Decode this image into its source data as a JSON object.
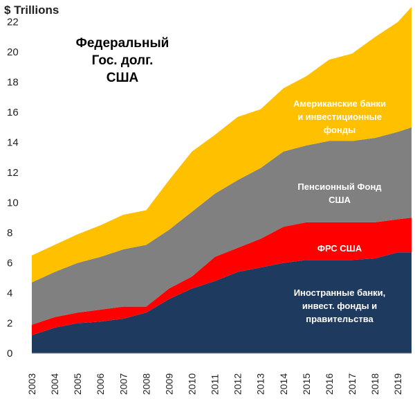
{
  "chart_data": {
    "type": "area",
    "stacked": true,
    "unit_label": "$ Trillions",
    "title_lines": [
      "Федеральный",
      "Гос. долг.",
      "США"
    ],
    "x": [
      2003,
      2004,
      2005,
      2006,
      2007,
      2008,
      2009,
      2010,
      2011,
      2012,
      2013,
      2014,
      2015,
      2016,
      2017,
      2018,
      2019,
      2019.6
    ],
    "x_tick_labels": [
      "2003",
      "2004",
      "2005",
      "2006",
      "2007",
      "2008",
      "2009",
      "2010",
      "2011",
      "2012",
      "2013",
      "2014",
      "2015",
      "2016",
      "2017",
      "2018",
      "2019"
    ],
    "ylim": [
      0,
      23
    ],
    "y_ticks": [
      0,
      2,
      4,
      6,
      8,
      10,
      12,
      14,
      16,
      18,
      20,
      22
    ],
    "grid": false,
    "series": [
      {
        "name": "Иностранные банки, инвест. фонды и правительства",
        "label_lines": [
          "Иностранные банки,",
          "инвест. фонды и",
          "правительства"
        ],
        "color": "#1f3a5f",
        "values": [
          1.2,
          1.7,
          2.0,
          2.1,
          2.3,
          2.7,
          3.6,
          4.3,
          4.8,
          5.4,
          5.7,
          6.0,
          6.2,
          6.2,
          6.2,
          6.3,
          6.7,
          6.7
        ]
      },
      {
        "name": "ФРС США",
        "label_lines": [
          "ФРС США"
        ],
        "color": "#ff0000",
        "values": [
          0.7,
          0.7,
          0.7,
          0.8,
          0.8,
          0.4,
          0.7,
          0.8,
          1.6,
          1.6,
          1.9,
          2.4,
          2.5,
          2.5,
          2.5,
          2.4,
          2.2,
          2.3
        ]
      },
      {
        "name": "Пенсионный Фонд США",
        "label_lines": [
          "Пенсионный Фонд",
          "США"
        ],
        "color": "#808080",
        "values": [
          2.8,
          3.0,
          3.3,
          3.5,
          3.8,
          4.1,
          3.9,
          4.3,
          4.2,
          4.5,
          4.7,
          5.0,
          5.1,
          5.4,
          5.4,
          5.6,
          5.8,
          6.0
        ]
      },
      {
        "name": "Американские банки и инвестиционные фонды",
        "label_lines": [
          "Американские банки",
          "и инвестиционные",
          "фонды"
        ],
        "color": "#ffc000",
        "values": [
          1.8,
          1.8,
          1.9,
          2.1,
          2.3,
          2.3,
          3.3,
          4.0,
          3.9,
          4.2,
          3.9,
          4.2,
          4.6,
          5.4,
          5.8,
          6.7,
          7.3,
          8.0
        ]
      }
    ]
  }
}
